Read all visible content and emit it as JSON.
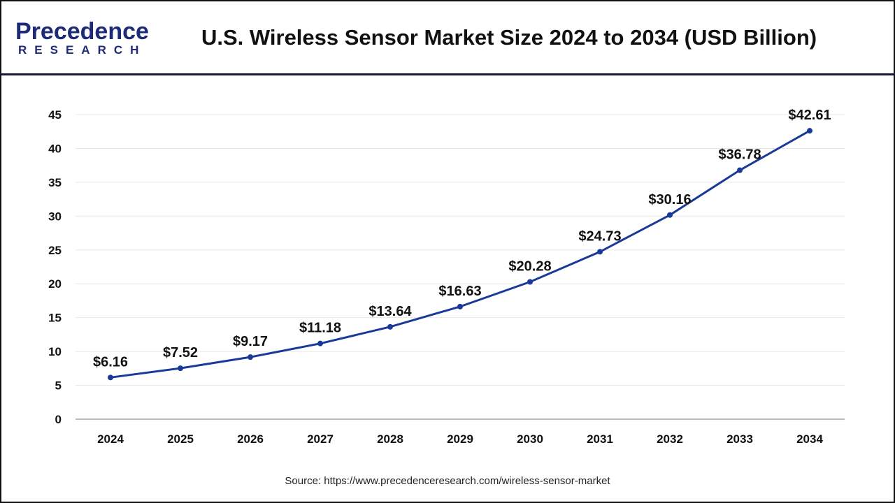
{
  "logo": {
    "line1": "Precedence",
    "line2": "RESEARCH"
  },
  "title": "U.S. Wireless Sensor Market Size 2024 to 2034 (USD Billion)",
  "source": "Source: https://www.precedenceresearch.com/wireless-sensor-market",
  "chart_data": {
    "type": "line",
    "title": "U.S. Wireless Sensor Market Size 2024 to 2034 (USD Billion)",
    "categories": [
      "2024",
      "2025",
      "2026",
      "2027",
      "2028",
      "2029",
      "2030",
      "2031",
      "2032",
      "2033",
      "2034"
    ],
    "values": [
      6.16,
      7.52,
      9.17,
      11.18,
      13.64,
      16.63,
      20.28,
      24.73,
      30.16,
      36.78,
      42.61
    ],
    "data_labels": [
      "$6.16",
      "$7.52",
      "$9.17",
      "$11.18",
      "$13.64",
      "$16.63",
      "$20.28",
      "$24.73",
      "$30.16",
      "$36.78",
      "$42.61"
    ],
    "ylim": [
      0,
      45
    ],
    "yticks": [
      0,
      5,
      10,
      15,
      20,
      25,
      30,
      35,
      40,
      45
    ],
    "grid": true,
    "line_color": "#1a3a9a",
    "xlabel": "",
    "ylabel": ""
  }
}
